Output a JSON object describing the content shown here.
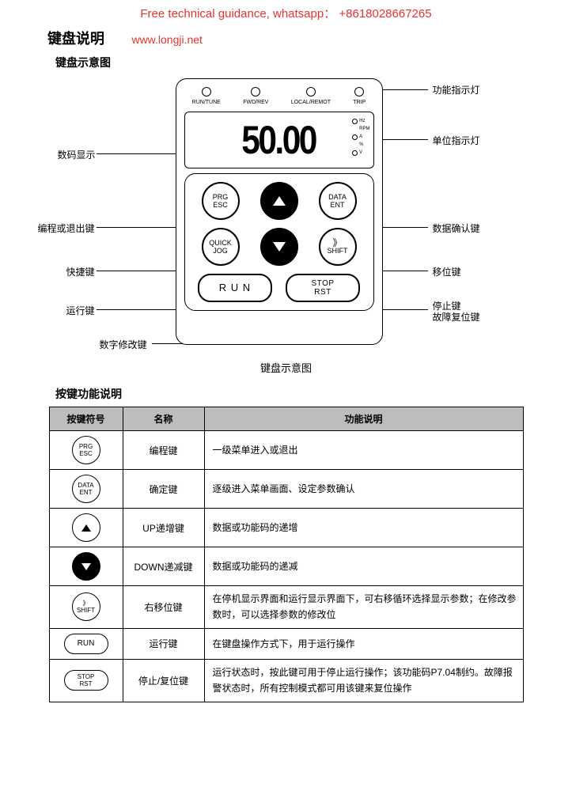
{
  "banner": "Free technical guidance, whatsapp： +8618028667265",
  "url": "www.longji.net",
  "title": "键盘说明",
  "subtitle": "键盘示意图",
  "caption": "键盘示意图",
  "display_value": "50.00",
  "leds": {
    "l0": "RUN/TUNE",
    "l1": "FWD/REV",
    "l2": "LOCAL/REMOT",
    "l3": "TRIP"
  },
  "units": {
    "u0": "Hz",
    "u1": "RPM",
    "u2": "A",
    "u3": "%",
    "u4": "V"
  },
  "buttons": {
    "prg_l1": "PRG",
    "prg_l2": "ESC",
    "data_l1": "DATA",
    "data_l2": "ENT",
    "quick_l1": "QUICK",
    "quick_l2": "JOG",
    "shift_l1": "》",
    "shift_l2": "SHIFT",
    "run": "R U N",
    "stop_l1": "STOP",
    "stop_l2": "RST"
  },
  "callouts": {
    "c1": "功能指示灯",
    "c2": "单位指示灯",
    "c3": "数码显示",
    "c4": "编程或退出键",
    "c5": "数据确认键",
    "c6": "快捷键",
    "c7": "移位键",
    "c8": "运行键",
    "c9_l1": "停止键",
    "c9_l2": "故障复位键",
    "c10": "数字修改键"
  },
  "table": {
    "title": "按键功能说明",
    "h1": "按键符号",
    "h2": "名称",
    "h3": "功能说明",
    "rows": [
      {
        "sym_type": "circ2",
        "l1": "PRG",
        "l2": "ESC",
        "name": "编程键",
        "desc": "一级菜单进入或退出"
      },
      {
        "sym_type": "circ2",
        "l1": "DATA",
        "l2": "ENT",
        "name": "确定键",
        "desc": "逐级进入菜单画面、设定参数确认"
      },
      {
        "sym_type": "tri_up_fill",
        "name": "UP递增键",
        "desc": "数据或功能码的递增"
      },
      {
        "sym_type": "tri_down_fill",
        "name": "DOWN递减键",
        "desc": "数据或功能码的递减"
      },
      {
        "sym_type": "circ2",
        "l1": "》",
        "l2": "SHIFT",
        "name": "右移位键",
        "desc": "在停机显示界面和运行显示界面下，可右移循环选择显示参数；在修改参数时，可以选择参数的修改位"
      },
      {
        "sym_type": "oval",
        "l1": "RUN",
        "name": "运行键",
        "desc": "在键盘操作方式下，用于运行操作"
      },
      {
        "sym_type": "oval2",
        "l1": "STOP",
        "l2": "RST",
        "name": "停止/复位键",
        "desc": "运行状态时，按此键可用于停止运行操作；该功能码P7.04制约。故障报警状态时，所有控制模式都可用该键来复位操作"
      }
    ]
  },
  "colors": {
    "accent": "#e5342e",
    "th_bg": "#bdbdbd",
    "line": "#000000"
  }
}
